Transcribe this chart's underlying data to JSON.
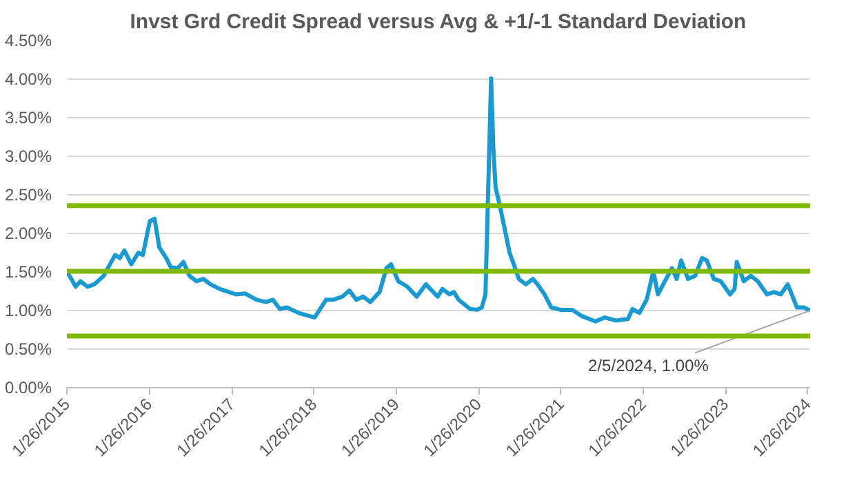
{
  "chart_data": {
    "type": "line",
    "title": "Invst Grd Credit Spread versus Avg & +1/-1 Standard Deviation",
    "x": [
      "2015-01-26",
      "2015-03-06",
      "2015-03-27",
      "2015-04-27",
      "2015-05-28",
      "2015-07-08",
      "2015-08-28",
      "2015-09-18",
      "2015-10-08",
      "2015-11-08",
      "2015-12-09",
      "2015-12-29",
      "2016-01-29",
      "2016-02-19",
      "2016-03-11",
      "2016-04-11",
      "2016-05-01",
      "2016-06-01",
      "2016-06-26",
      "2016-07-23",
      "2016-08-23",
      "2016-09-23",
      "2016-10-24",
      "2016-12-04",
      "2017-01-14",
      "2017-02-14",
      "2017-03-27",
      "2017-05-17",
      "2017-06-27",
      "2017-07-28",
      "2017-08-28",
      "2017-09-28",
      "2017-11-18",
      "2018-01-29",
      "2018-03-21",
      "2018-04-21",
      "2018-06-01",
      "2018-07-02",
      "2018-08-02",
      "2018-09-02",
      "2018-10-03",
      "2018-11-13",
      "2018-12-14",
      "2019-01-03",
      "2019-02-04",
      "2019-03-16",
      "2019-04-27",
      "2019-06-07",
      "2019-07-29",
      "2019-08-19",
      "2019-09-19",
      "2019-10-09",
      "2019-10-30",
      "2019-12-20",
      "2020-01-20",
      "2020-02-10",
      "2020-02-26",
      "2020-03-22",
      "2020-04-01",
      "2020-04-11",
      "2020-04-22",
      "2020-05-12",
      "2020-06-12",
      "2020-07-03",
      "2020-07-23",
      "2020-08-23",
      "2020-09-23",
      "2020-10-14",
      "2020-11-14",
      "2020-12-14",
      "2021-01-24",
      "2021-03-17",
      "2021-04-27",
      "2021-06-28",
      "2021-08-08",
      "2021-09-28",
      "2021-11-19",
      "2021-12-09",
      "2022-01-09",
      "2022-02-10",
      "2022-03-12",
      "2022-04-01",
      "2022-05-02",
      "2022-06-02",
      "2022-06-23",
      "2022-07-13",
      "2022-08-13",
      "2022-09-13",
      "2022-10-14",
      "2022-11-04",
      "2022-12-05",
      "2023-01-05",
      "2023-02-15",
      "2023-03-07",
      "2023-03-17",
      "2023-04-17",
      "2023-05-18",
      "2023-06-18",
      "2023-07-29",
      "2023-08-29",
      "2023-09-28",
      "2023-10-29",
      "2023-12-09",
      "2024-01-09",
      "2024-02-05"
    ],
    "series": [
      {
        "color": "#1b9ad1",
        "values": [
          1.51,
          1.31,
          1.38,
          1.31,
          1.34,
          1.45,
          1.72,
          1.68,
          1.78,
          1.6,
          1.75,
          1.72,
          2.16,
          2.19,
          1.82,
          1.68,
          1.56,
          1.55,
          1.63,
          1.45,
          1.38,
          1.41,
          1.34,
          1.28,
          1.24,
          1.21,
          1.22,
          1.14,
          1.11,
          1.14,
          1.02,
          1.04,
          0.97,
          0.91,
          1.14,
          1.14,
          1.18,
          1.26,
          1.14,
          1.18,
          1.11,
          1.24,
          1.55,
          1.6,
          1.38,
          1.31,
          1.18,
          1.34,
          1.18,
          1.28,
          1.21,
          1.24,
          1.14,
          1.02,
          1.01,
          1.04,
          1.21,
          4.01,
          3.1,
          2.59,
          2.46,
          2.19,
          1.75,
          1.58,
          1.41,
          1.34,
          1.41,
          1.34,
          1.21,
          1.04,
          1.01,
          1.01,
          0.93,
          0.86,
          0.91,
          0.87,
          0.89,
          1.02,
          0.97,
          1.14,
          1.51,
          1.21,
          1.38,
          1.55,
          1.41,
          1.65,
          1.41,
          1.45,
          1.68,
          1.65,
          1.41,
          1.38,
          1.21,
          1.28,
          1.63,
          1.38,
          1.45,
          1.38,
          1.21,
          1.24,
          1.21,
          1.34,
          1.04,
          1.04,
          1.0
        ]
      }
    ],
    "ref_lines": [
      {
        "axis": "y",
        "value": 2.36,
        "color": "#7fba00"
      },
      {
        "axis": "y",
        "value": 1.51,
        "color": "#7fba00"
      },
      {
        "axis": "y",
        "value": 0.67,
        "color": "#7fba00"
      }
    ],
    "annotations": [
      {
        "text": "2/5/2024, 1.00%",
        "x": "2024-02-05",
        "y": 1.0
      }
    ],
    "xlim": [
      "2015-01-26",
      "2024-02-05"
    ],
    "xticks": [
      {
        "value": "2015-01-26",
        "label": "1/26/2015"
      },
      {
        "value": "2016-01-26",
        "label": "1/26/2016"
      },
      {
        "value": "2017-01-26",
        "label": "1/26/2017"
      },
      {
        "value": "2018-01-26",
        "label": "1/26/2018"
      },
      {
        "value": "2019-01-26",
        "label": "1/26/2019"
      },
      {
        "value": "2020-01-26",
        "label": "1/26/2020"
      },
      {
        "value": "2021-01-26",
        "label": "1/26/2021"
      },
      {
        "value": "2022-01-26",
        "label": "1/26/2022"
      },
      {
        "value": "2023-01-26",
        "label": "1/26/2023"
      },
      {
        "value": "2024-01-26",
        "label": "1/26/2024"
      }
    ],
    "ylim": [
      0,
      4.5
    ],
    "yticks": [
      {
        "value": 0,
        "label": "0.00%"
      },
      {
        "value": 0.5,
        "label": "0.50%"
      },
      {
        "value": 1.0,
        "label": "1.00%"
      },
      {
        "value": 1.5,
        "label": "1.50%"
      },
      {
        "value": 2.0,
        "label": "2.00%"
      },
      {
        "value": 2.5,
        "label": "2.50%"
      },
      {
        "value": 3.0,
        "label": "3.00%"
      },
      {
        "value": 3.5,
        "label": "3.50%"
      },
      {
        "value": 4.0,
        "label": "4.00%"
      },
      {
        "value": 4.5,
        "label": "4.50%"
      }
    ],
    "grid": "y",
    "marker": "none",
    "line_style": "solid"
  }
}
